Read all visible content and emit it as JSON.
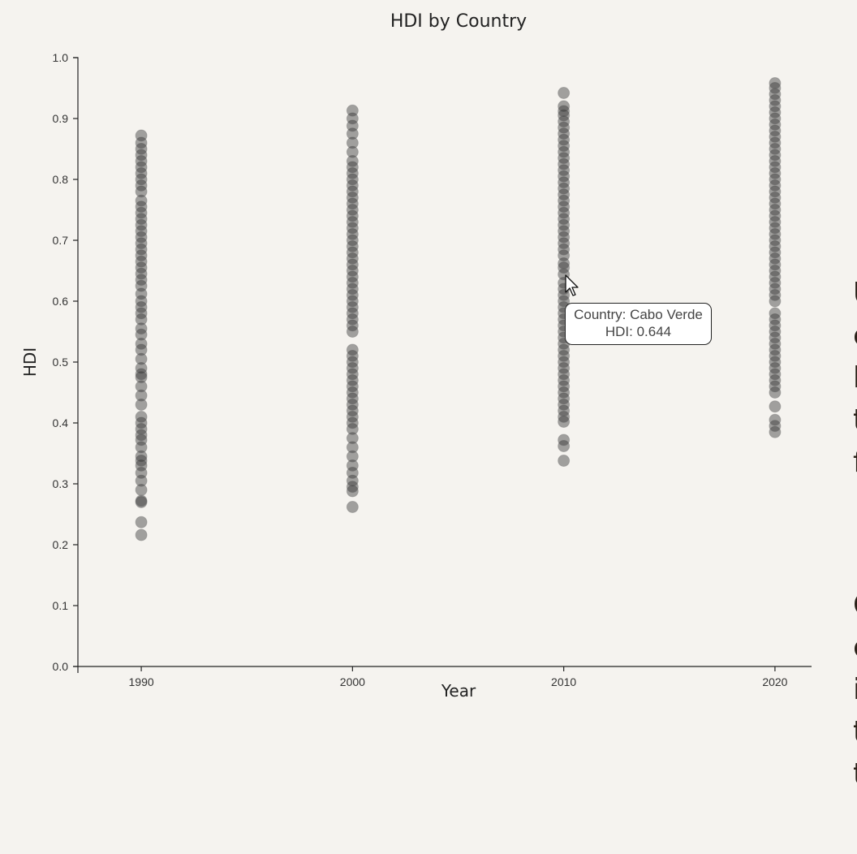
{
  "chart_data": {
    "type": "scatter",
    "title": "HDI by Country",
    "xlabel": "Year",
    "ylabel": "HDI",
    "xlim": [
      1987,
      2023
    ],
    "ylim": [
      0,
      1
    ],
    "x_ticks": [
      "1990",
      "2000",
      "2010",
      "2020"
    ],
    "y_ticks": [
      "0.0",
      "0.1",
      "0.2",
      "0.3",
      "0.4",
      "0.5",
      "0.6",
      "0.7",
      "0.8",
      "0.9",
      "1.0"
    ],
    "grid": false,
    "series": [
      {
        "x": 1990,
        "y": [
          0.216,
          0.237,
          0.27,
          0.272,
          0.29,
          0.305,
          0.318,
          0.33,
          0.338,
          0.345,
          0.36,
          0.372,
          0.38,
          0.39,
          0.4,
          0.41,
          0.43,
          0.445,
          0.46,
          0.475,
          0.48,
          0.49,
          0.505,
          0.52,
          0.53,
          0.545,
          0.555,
          0.57,
          0.58,
          0.59,
          0.6,
          0.612,
          0.625,
          0.635,
          0.645,
          0.655,
          0.665,
          0.675,
          0.685,
          0.695,
          0.705,
          0.715,
          0.725,
          0.735,
          0.745,
          0.755,
          0.765,
          0.78,
          0.79,
          0.8,
          0.81,
          0.82,
          0.83,
          0.84,
          0.85,
          0.86,
          0.872
        ]
      },
      {
        "x": 2000,
        "y": [
          0.262,
          0.288,
          0.295,
          0.305,
          0.318,
          0.33,
          0.345,
          0.36,
          0.375,
          0.39,
          0.4,
          0.41,
          0.42,
          0.43,
          0.44,
          0.45,
          0.46,
          0.47,
          0.48,
          0.49,
          0.5,
          0.51,
          0.52,
          0.55,
          0.56,
          0.57,
          0.58,
          0.59,
          0.6,
          0.61,
          0.62,
          0.63,
          0.64,
          0.65,
          0.66,
          0.67,
          0.68,
          0.69,
          0.7,
          0.71,
          0.72,
          0.73,
          0.74,
          0.75,
          0.76,
          0.77,
          0.78,
          0.79,
          0.8,
          0.81,
          0.82,
          0.83,
          0.845,
          0.86,
          0.875,
          0.888,
          0.9,
          0.913
        ]
      },
      {
        "x": 2010,
        "y": [
          0.338,
          0.362,
          0.372,
          0.402,
          0.41,
          0.42,
          0.43,
          0.44,
          0.45,
          0.46,
          0.47,
          0.48,
          0.49,
          0.5,
          0.51,
          0.52,
          0.53,
          0.54,
          0.55,
          0.56,
          0.57,
          0.58,
          0.59,
          0.6,
          0.61,
          0.62,
          0.63,
          0.644,
          0.655,
          0.662,
          0.675,
          0.685,
          0.695,
          0.705,
          0.715,
          0.725,
          0.735,
          0.745,
          0.755,
          0.765,
          0.775,
          0.785,
          0.795,
          0.805,
          0.815,
          0.825,
          0.835,
          0.845,
          0.855,
          0.865,
          0.875,
          0.885,
          0.895,
          0.905,
          0.912,
          0.92,
          0.942
        ]
      },
      {
        "x": 2020,
        "y": [
          0.385,
          0.395,
          0.405,
          0.427,
          0.45,
          0.46,
          0.47,
          0.48,
          0.49,
          0.5,
          0.51,
          0.52,
          0.53,
          0.54,
          0.55,
          0.56,
          0.57,
          0.58,
          0.6,
          0.61,
          0.62,
          0.63,
          0.64,
          0.65,
          0.66,
          0.67,
          0.68,
          0.69,
          0.7,
          0.71,
          0.72,
          0.73,
          0.74,
          0.75,
          0.76,
          0.77,
          0.78,
          0.79,
          0.8,
          0.81,
          0.82,
          0.83,
          0.84,
          0.85,
          0.86,
          0.87,
          0.88,
          0.89,
          0.9,
          0.91,
          0.92,
          0.93,
          0.94,
          0.95,
          0.958
        ]
      }
    ]
  },
  "tooltip": {
    "line1": "Country: Cabo Verde",
    "line2": "HDI: 0.644"
  },
  "side_text": {
    "paragraph1": [
      "U",
      "c",
      "h",
      "t",
      "f"
    ],
    "paragraph2": [
      "C",
      "c",
      "i",
      "t",
      "t"
    ]
  },
  "colors": {
    "background": "#f5f3ef",
    "dot": "#2b2b2b",
    "side_text_accent": "#8a5a20"
  },
  "icons": {
    "cursor": "pointer-cursor-icon"
  }
}
